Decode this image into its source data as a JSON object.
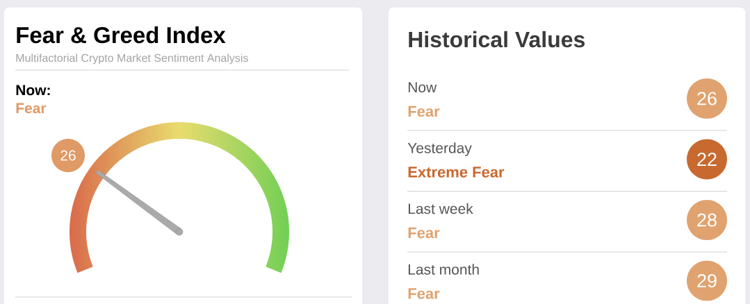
{
  "chart_data": [
    {
      "type": "other",
      "title": "Fear & Greed Index",
      "subtitle": "Multifactorial Crypto Market Sentiment Analysis",
      "annotations": [
        "Now:",
        "Fear"
      ],
      "values": [
        26
      ],
      "color": "#df9a66",
      "data_labels": true
    },
    {
      "type": "other",
      "title": "Historical Values",
      "annotations": [
        "Now",
        "Fear",
        "Yesterday",
        "Extreme Fear",
        "Last week",
        "Fear",
        "Last month",
        "Fear"
      ],
      "values": [
        26,
        22,
        28,
        29
      ],
      "colors": [
        "#e0a26f",
        "#c8692f",
        "#e0a26f",
        "#e0a26f"
      ],
      "data_labels": true
    }
  ]
}
